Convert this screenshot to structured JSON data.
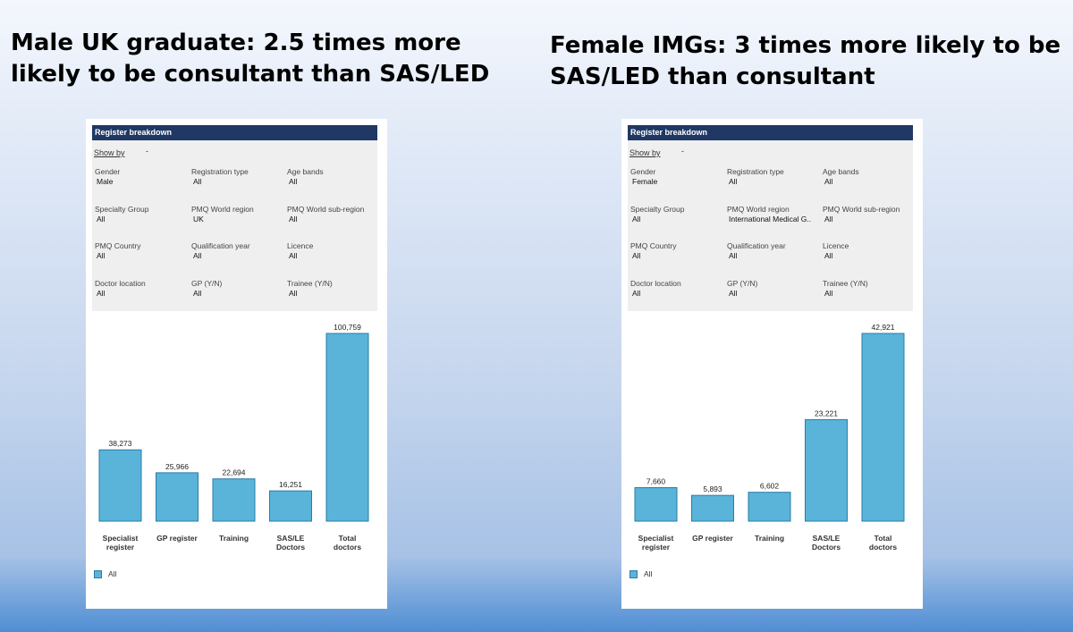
{
  "titles": {
    "left": "Male UK graduate: 2.5 times more likely to be consultant than SAS/LED",
    "right": "Female IMGs: 3 times more likely to be SAS/LED than consultant"
  },
  "bar_color": "#5ab4d9",
  "bar_border_color": "#2a7ba6",
  "header_color": "#1f3864",
  "panels": [
    {
      "header": "Register breakdown",
      "show_by_label": "Show by",
      "show_by_value": "-",
      "filters": [
        {
          "label": "Gender",
          "value": "Male"
        },
        {
          "label": "Registration type",
          "value": "All"
        },
        {
          "label": "Age bands",
          "value": "All"
        },
        {
          "label": "Specialty Group",
          "value": "All"
        },
        {
          "label": "PMQ World region",
          "value": "UK"
        },
        {
          "label": "PMQ World sub-region",
          "value": "All"
        },
        {
          "label": "PMQ Country",
          "value": "All"
        },
        {
          "label": "Qualification year",
          "value": "All"
        },
        {
          "label": "Licence",
          "value": "All"
        },
        {
          "label": "Doctor location",
          "value": "All"
        },
        {
          "label": "GP (Y/N)",
          "value": "All"
        },
        {
          "label": "Trainee (Y/N)",
          "value": "All"
        }
      ],
      "legend": "All"
    },
    {
      "header": "Register breakdown",
      "show_by_label": "Show by",
      "show_by_value": "-",
      "filters": [
        {
          "label": "Gender",
          "value": "Female"
        },
        {
          "label": "Registration type",
          "value": "All"
        },
        {
          "label": "Age bands",
          "value": "All"
        },
        {
          "label": "Specialty Group",
          "value": "All"
        },
        {
          "label": "PMQ World region",
          "value": "International Medical G.."
        },
        {
          "label": "PMQ World sub-region",
          "value": "All"
        },
        {
          "label": "PMQ Country",
          "value": "All"
        },
        {
          "label": "Qualification year",
          "value": "All"
        },
        {
          "label": "Licence",
          "value": "All"
        },
        {
          "label": "Doctor location",
          "value": "All"
        },
        {
          "label": "GP (Y/N)",
          "value": "All"
        },
        {
          "label": "Trainee (Y/N)",
          "value": "All"
        }
      ],
      "legend": "All"
    }
  ],
  "chart_data": [
    {
      "type": "bar",
      "title": "Register breakdown",
      "categories": [
        [
          "Specialist",
          "register"
        ],
        [
          "GP register"
        ],
        [
          "Training"
        ],
        [
          "SAS/LE",
          "Doctors"
        ],
        [
          "Total",
          "doctors"
        ]
      ],
      "values": [
        38273,
        25966,
        22694,
        16251,
        100759
      ],
      "data_labels": [
        "38,273",
        "25,966",
        "22,694",
        "16,251",
        "100,759"
      ],
      "series_name": "All",
      "legend": "bottom-left"
    },
    {
      "type": "bar",
      "title": "Register breakdown",
      "categories": [
        [
          "Specialist",
          "register"
        ],
        [
          "GP register"
        ],
        [
          "Training"
        ],
        [
          "SAS/LE",
          "Doctors"
        ],
        [
          "Total",
          "doctors"
        ]
      ],
      "values": [
        7660,
        5893,
        6602,
        23221,
        42921
      ],
      "data_labels": [
        "7,660",
        "5,893",
        "6,602",
        "23,221",
        "42,921"
      ],
      "series_name": "All",
      "legend": "bottom-left"
    }
  ]
}
